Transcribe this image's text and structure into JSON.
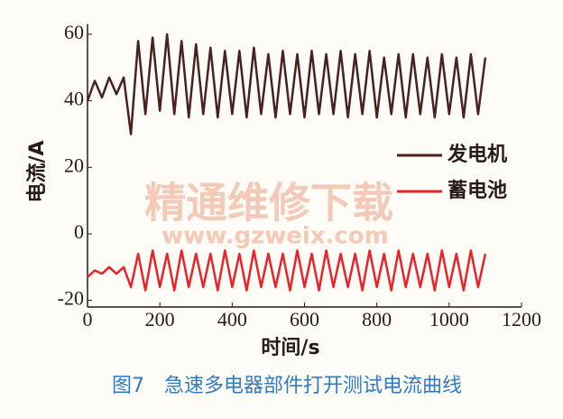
{
  "chart_data": {
    "type": "line",
    "ylabel": "电流/A",
    "xlabel": "时间/s",
    "caption": "图7　急速多电器部件打开测试电流曲线",
    "watermark": "精通维修下载",
    "watermark_url": "www.gzweix.com",
    "legend": "right",
    "x": [
      0,
      20,
      40,
      60,
      80,
      100,
      120,
      140,
      160,
      180,
      200,
      220,
      240,
      260,
      280,
      300,
      320,
      340,
      360,
      380,
      400,
      420,
      440,
      460,
      480,
      500,
      520,
      540,
      560,
      580,
      600,
      620,
      640,
      660,
      680,
      700,
      720,
      740,
      760,
      780,
      800,
      820,
      840,
      860,
      880,
      900,
      920,
      940,
      960,
      980,
      1000,
      1020,
      1040,
      1060,
      1080,
      1100
    ],
    "series": [
      {
        "name": "发电机",
        "color": "#4a2020",
        "values": [
          40,
          46,
          41,
          47,
          42,
          47,
          30,
          58,
          36,
          59,
          37,
          60,
          36,
          58,
          35,
          57,
          36,
          56,
          35,
          55,
          36,
          55,
          35,
          56,
          36,
          54,
          35,
          55,
          36,
          54,
          35,
          55,
          36,
          54,
          36,
          55,
          35,
          54,
          36,
          55,
          35,
          53,
          36,
          54,
          35,
          54,
          36,
          53,
          35,
          54,
          36,
          53,
          35,
          54,
          36,
          53
        ]
      },
      {
        "name": "蓄电池",
        "color": "#e8242a",
        "values": [
          -13,
          -11,
          -12,
          -10,
          -12,
          -10,
          -16,
          -6,
          -17,
          -5,
          -16,
          -6,
          -17,
          -5,
          -16,
          -6,
          -16,
          -6,
          -17,
          -5,
          -16,
          -6,
          -17,
          -5,
          -16,
          -6,
          -16,
          -6,
          -17,
          -5,
          -16,
          -6,
          -17,
          -5,
          -16,
          -6,
          -16,
          -6,
          -17,
          -5,
          -16,
          -6,
          -17,
          -5,
          -16,
          -6,
          -16,
          -6,
          -17,
          -5,
          -16,
          -6,
          -17,
          -5,
          -16,
          -6
        ]
      }
    ],
    "xlim": [
      0,
      1200
    ],
    "xticks": [
      0,
      200,
      400,
      600,
      800,
      1000,
      1200
    ],
    "ylim": [
      -22,
      62
    ],
    "yticks": [
      -20,
      0,
      20,
      40,
      60
    ]
  }
}
